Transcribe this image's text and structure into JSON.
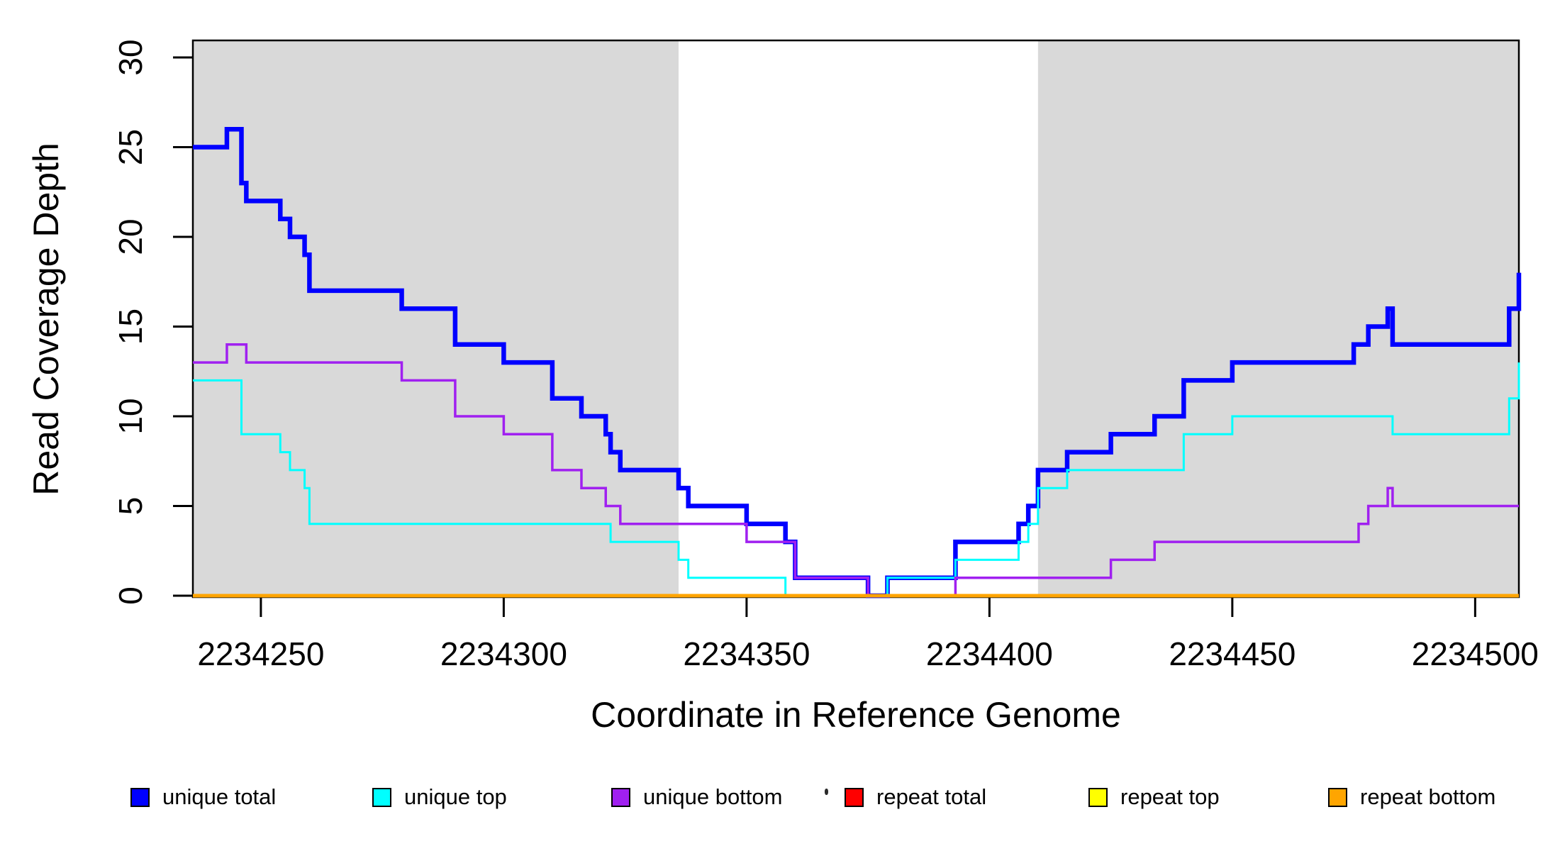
{
  "chart_data": {
    "type": "line",
    "step": true,
    "title": "",
    "xlabel": "Coordinate in Reference Genome",
    "ylabel": "Read Coverage Depth",
    "xlim": [
      2234236,
      2234509
    ],
    "ylim": [
      0,
      30.95
    ],
    "x_ticks": [
      2234250,
      2234300,
      2234350,
      2234400,
      2234450,
      2234500
    ],
    "y_ticks": [
      0,
      5,
      10,
      15,
      20,
      25,
      30
    ],
    "grid": false,
    "legend_position": "bottom",
    "shade_color": "#D9D9D9",
    "shaded_regions": [
      {
        "x0": 2234236,
        "x1": 2234336
      },
      {
        "x0": 2234410,
        "x1": 2234509
      }
    ],
    "series": [
      {
        "name": "unique total",
        "color": "#0000FF",
        "points": [
          [
            2234236,
            25
          ],
          [
            2234243,
            26
          ],
          [
            2234246,
            23
          ],
          [
            2234247,
            22
          ],
          [
            2234254,
            21
          ],
          [
            2234256,
            20
          ],
          [
            2234259,
            19
          ],
          [
            2234260,
            17
          ],
          [
            2234279,
            16
          ],
          [
            2234290,
            14
          ],
          [
            2234300,
            13
          ],
          [
            2234310,
            11
          ],
          [
            2234316,
            10
          ],
          [
            2234321,
            9
          ],
          [
            2234322,
            8
          ],
          [
            2234324,
            7
          ],
          [
            2234336,
            6
          ],
          [
            2234338,
            5
          ],
          [
            2234350,
            4
          ],
          [
            2234358,
            3
          ],
          [
            2234360,
            1
          ],
          [
            2234375,
            0
          ],
          [
            2234379,
            1
          ],
          [
            2234393,
            3
          ],
          [
            2234406,
            4
          ],
          [
            2234408,
            5
          ],
          [
            2234410,
            7
          ],
          [
            2234416,
            8
          ],
          [
            2234425,
            9
          ],
          [
            2234434,
            10
          ],
          [
            2234440,
            12
          ],
          [
            2234450,
            13
          ],
          [
            2234475,
            14
          ],
          [
            2234478,
            15
          ],
          [
            2234482,
            16
          ],
          [
            2234483,
            14
          ],
          [
            2234507,
            16
          ],
          [
            2234509,
            18
          ]
        ]
      },
      {
        "name": "unique top",
        "color": "#00FFFF",
        "points": [
          [
            2234236,
            12
          ],
          [
            2234246,
            9
          ],
          [
            2234254,
            8
          ],
          [
            2234256,
            7
          ],
          [
            2234259,
            6
          ],
          [
            2234260,
            4
          ],
          [
            2234322,
            3
          ],
          [
            2234336,
            2
          ],
          [
            2234338,
            1
          ],
          [
            2234358,
            0
          ],
          [
            2234379,
            1
          ],
          [
            2234393,
            2
          ],
          [
            2234406,
            3
          ],
          [
            2234408,
            4
          ],
          [
            2234410,
            6
          ],
          [
            2234416,
            7
          ],
          [
            2234440,
            9
          ],
          [
            2234450,
            10
          ],
          [
            2234483,
            9
          ],
          [
            2234507,
            11
          ],
          [
            2234509,
            13
          ]
        ]
      },
      {
        "name": "unique bottom",
        "color": "#A020F0",
        "points": [
          [
            2234236,
            13
          ],
          [
            2234243,
            14
          ],
          [
            2234247,
            13
          ],
          [
            2234279,
            12
          ],
          [
            2234290,
            10
          ],
          [
            2234300,
            9
          ],
          [
            2234310,
            7
          ],
          [
            2234316,
            6
          ],
          [
            2234321,
            5
          ],
          [
            2234324,
            4
          ],
          [
            2234350,
            3
          ],
          [
            2234360,
            1
          ],
          [
            2234375,
            0
          ],
          [
            2234393,
            1
          ],
          [
            2234425,
            2
          ],
          [
            2234434,
            3
          ],
          [
            2234476,
            4
          ],
          [
            2234478,
            5
          ],
          [
            2234482,
            6
          ],
          [
            2234483,
            5
          ]
        ]
      },
      {
        "name": "repeat total",
        "color": "#FF0000",
        "points": [
          [
            2234236,
            0
          ]
        ]
      },
      {
        "name": "repeat top",
        "color": "#FFFF00",
        "points": [
          [
            2234236,
            0
          ]
        ]
      },
      {
        "name": "repeat bottom",
        "color": "#FFA500",
        "points": [
          [
            2234236,
            0
          ]
        ]
      }
    ]
  }
}
